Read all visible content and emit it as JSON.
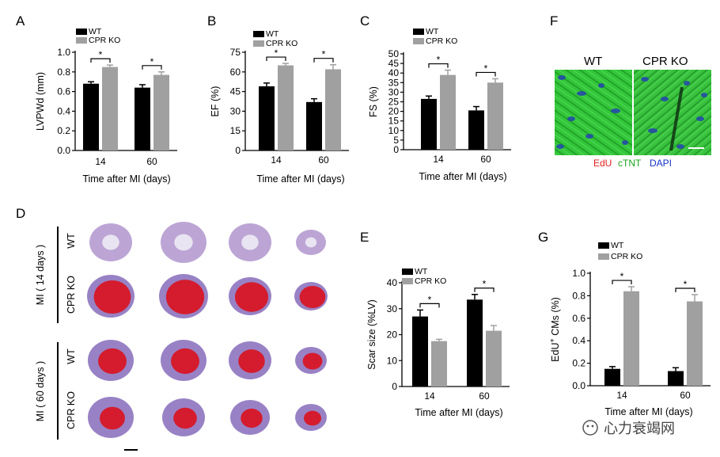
{
  "colors": {
    "wt": "#000000",
    "ko": "#a0a0a0",
    "cell_green": "#33c63a",
    "nuclei_blue": "#2444b0",
    "edu_red": "#e0201c",
    "ctnt_green": "#1aa51a",
    "dapi_blue": "#1533c9",
    "tissue_red": "#d41c2e",
    "tissue_blue": "#6f5bb0"
  },
  "panels": {
    "A": "A",
    "B": "B",
    "C": "C",
    "D": "D",
    "E": "E",
    "F": "F",
    "G": "G"
  },
  "legend": {
    "wt": "WT",
    "ko": "CPR KO"
  },
  "chart_data": [
    {
      "id": "A",
      "type": "bar",
      "categories": [
        "14",
        "60"
      ],
      "series": [
        {
          "name": "WT",
          "values": [
            0.68,
            0.64
          ],
          "errors": [
            0.02,
            0.03
          ]
        },
        {
          "name": "CPR KO",
          "values": [
            0.85,
            0.77
          ],
          "errors": [
            0.02,
            0.03
          ]
        }
      ],
      "xlabel": "Time after MI (days)",
      "ylabel": "LVPWd (mm)",
      "ylim": [
        0,
        1.0
      ],
      "yticks": [
        "0.0",
        "0.2",
        "0.4",
        "0.6",
        "0.8",
        "1.0"
      ],
      "significance": [
        "*",
        "*"
      ]
    },
    {
      "id": "B",
      "type": "bar",
      "categories": [
        "14",
        "60"
      ],
      "series": [
        {
          "name": "WT",
          "values": [
            49,
            37
          ],
          "errors": [
            2.5,
            2.5
          ]
        },
        {
          "name": "CPR KO",
          "values": [
            65,
            62
          ],
          "errors": [
            1.5,
            3.5
          ]
        }
      ],
      "xlabel": "Time after MI (days)",
      "ylabel": "EF (%)",
      "ylim": [
        0,
        75
      ],
      "yticks": [
        "0",
        "15",
        "30",
        "45",
        "60",
        "75"
      ],
      "significance": [
        "*",
        "*"
      ]
    },
    {
      "id": "C",
      "type": "bar",
      "categories": [
        "14",
        "60"
      ],
      "series": [
        {
          "name": "WT",
          "values": [
            26.5,
            20.5
          ],
          "errors": [
            1.5,
            2
          ]
        },
        {
          "name": "CPR KO",
          "values": [
            39,
            35
          ],
          "errors": [
            2.5,
            2
          ]
        }
      ],
      "xlabel": "Time after MI (days)",
      "ylabel": "FS (%)",
      "ylim": [
        0,
        50
      ],
      "yticks": [
        "0",
        "5",
        "10",
        "15",
        "20",
        "25",
        "30",
        "35",
        "40",
        "45",
        "50"
      ],
      "significance": [
        "*",
        "*"
      ]
    },
    {
      "id": "E",
      "type": "bar",
      "categories": [
        "14",
        "60"
      ],
      "series": [
        {
          "name": "WT",
          "values": [
            27,
            33.5
          ],
          "errors": [
            2.5,
            2
          ]
        },
        {
          "name": "CPR KO",
          "values": [
            17.5,
            21.5
          ],
          "errors": [
            0.7,
            2
          ]
        }
      ],
      "xlabel": "Time after MI (days)",
      "ylabel": "Scar size (%LV)",
      "ylim": [
        0,
        40
      ],
      "yticks": [
        "0",
        "10",
        "20",
        "30",
        "40"
      ],
      "significance": [
        "*",
        "*"
      ]
    },
    {
      "id": "G",
      "type": "bar",
      "categories": [
        "14",
        "60"
      ],
      "series": [
        {
          "name": "WT",
          "values": [
            0.15,
            0.13
          ],
          "errors": [
            0.02,
            0.03
          ]
        },
        {
          "name": "CPR KO",
          "values": [
            0.84,
            0.75
          ],
          "errors": [
            0.04,
            0.06
          ]
        }
      ],
      "xlabel": "Time after MI (days)",
      "ylabel": "EdU+ CMs (%)",
      "ylim": [
        0,
        1.0
      ],
      "yticks": [
        "0.0",
        "0.2",
        "0.4",
        "0.6",
        "0.8",
        "1.0"
      ],
      "significance": [
        "*",
        "*"
      ]
    }
  ],
  "panelD": {
    "group1": "MI ( 14 days )",
    "group2": "MI ( 60 days )",
    "rows": [
      "WT",
      "CPR KO",
      "WT",
      "CPR KO"
    ]
  },
  "panelF": {
    "wt": "WT",
    "ko": "CPR KO",
    "edu": "EdU",
    "ctnt": "cTNT",
    "dapi": "DAPI"
  },
  "watermark": "心力衰竭网"
}
